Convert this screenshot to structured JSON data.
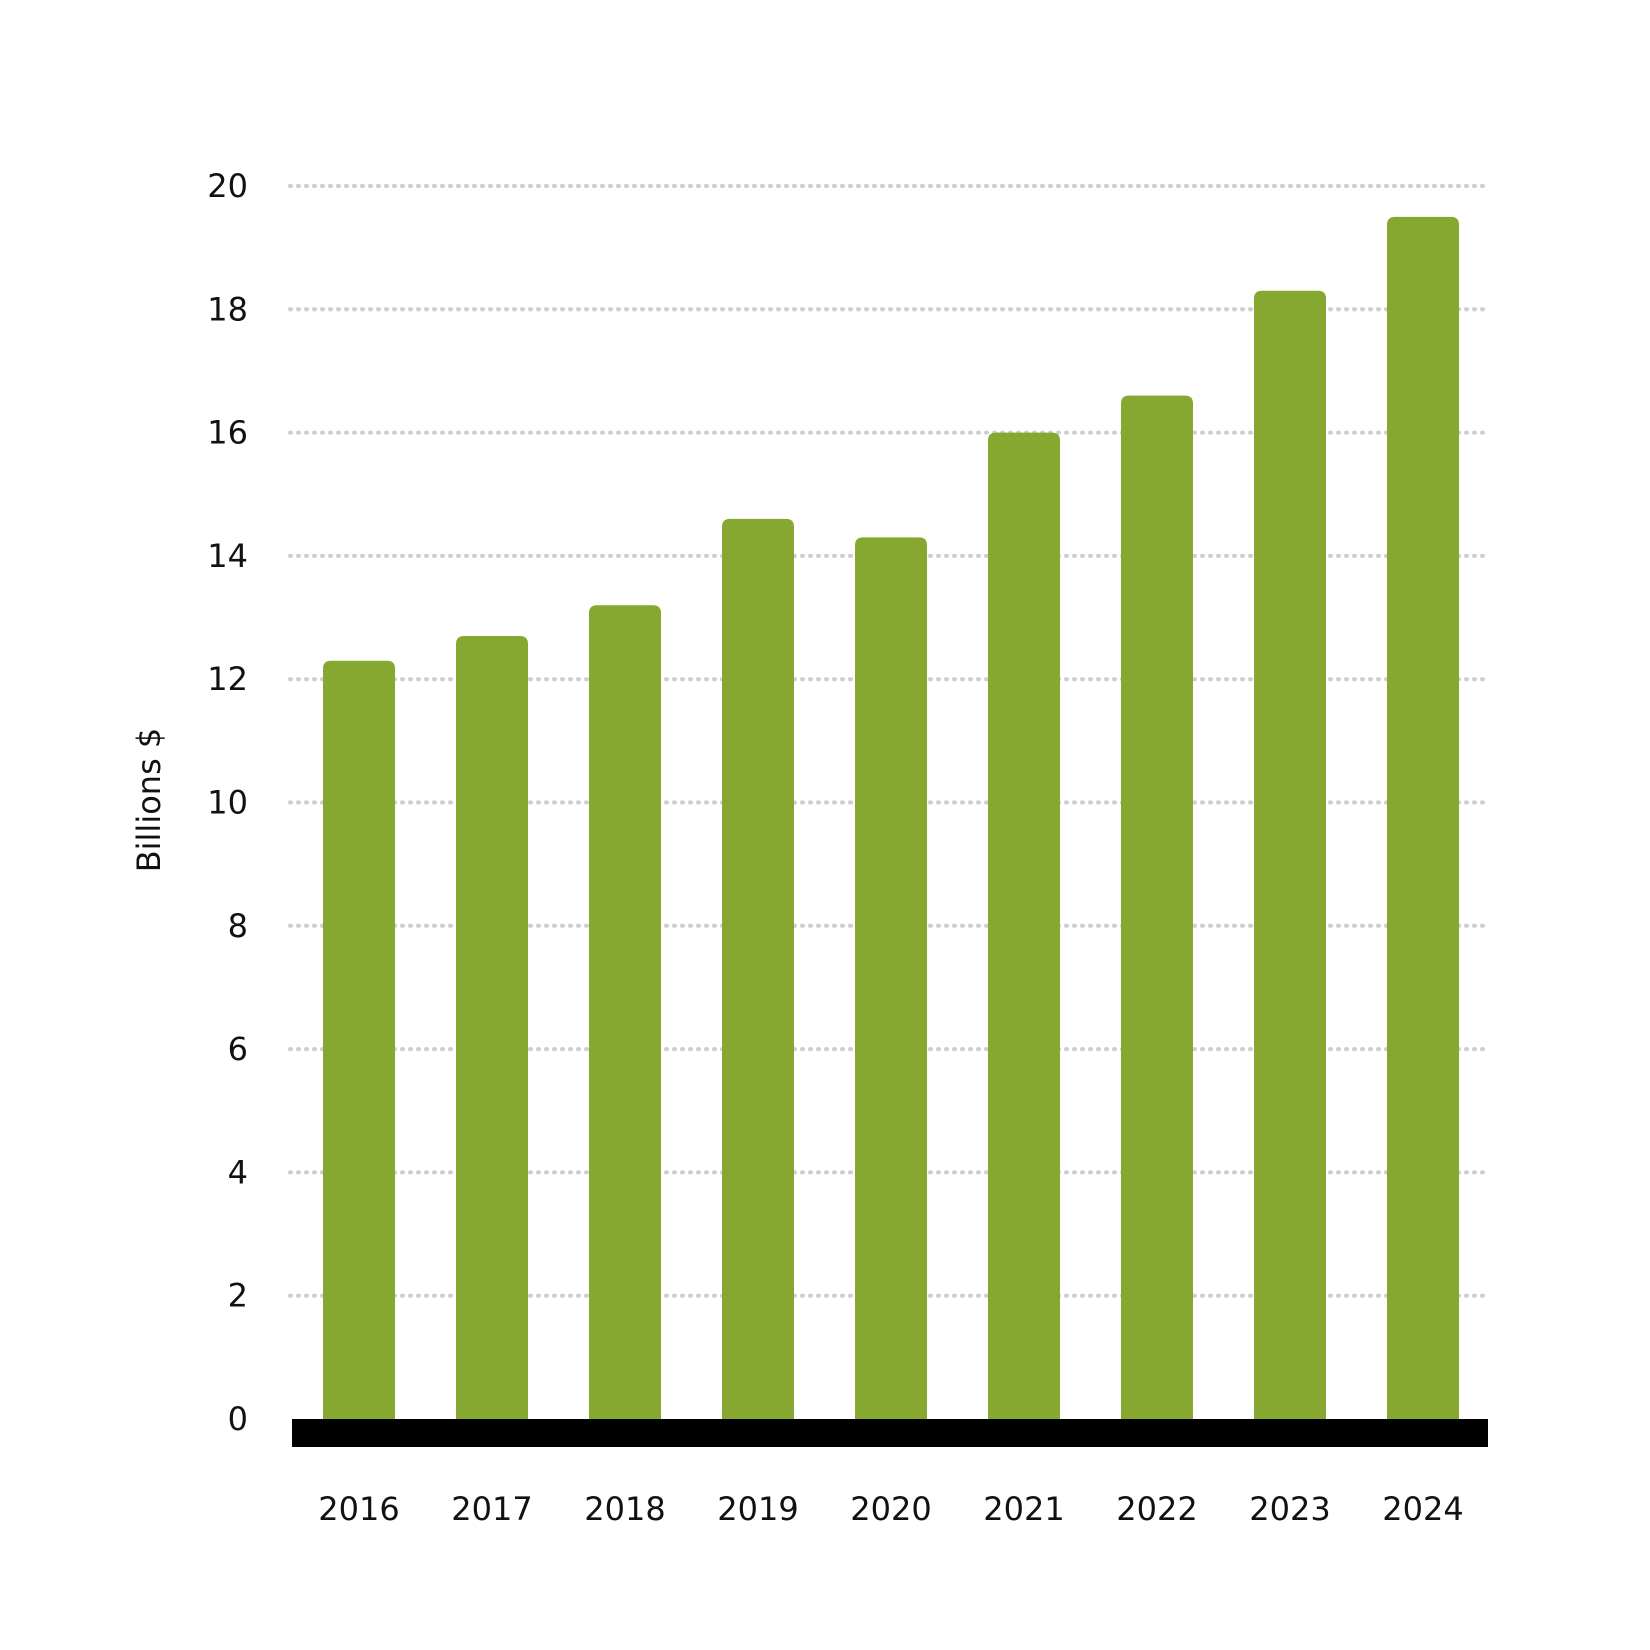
{
  "chart_data": {
    "type": "bar",
    "title": "",
    "xlabel": "",
    "ylabel": "Billions $",
    "categories": [
      "2016",
      "2017",
      "2018",
      "2019",
      "2020",
      "2021",
      "2022",
      "2023",
      "2024"
    ],
    "series": [
      {
        "values": [
          12.3,
          12.7,
          13.2,
          14.6,
          14.3,
          16.0,
          16.6,
          18.3,
          19.5
        ]
      }
    ],
    "ylim": [
      0,
      20
    ],
    "yticks": [
      0,
      2,
      4,
      6,
      8,
      10,
      12,
      14,
      16,
      18,
      20
    ],
    "grid": true,
    "legend": "none",
    "colors": {
      "bar": "#87a830",
      "baseline": "#000000",
      "grid": "#cfcfcf",
      "text": "#111111"
    }
  }
}
